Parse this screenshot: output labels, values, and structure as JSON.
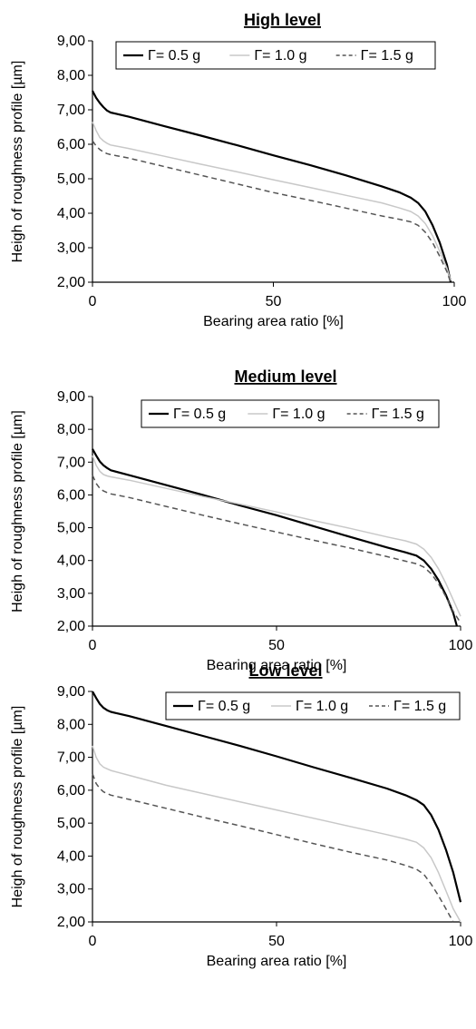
{
  "chart_data": [
    {
      "type": "line",
      "title": "High level",
      "xlabel": "Bearing area ratio [%]",
      "ylabel": "Heigh of roughness profile [µm]",
      "xlim": [
        0,
        100
      ],
      "ylim": [
        2,
        9
      ],
      "xticks": [
        "0",
        "50",
        "100"
      ],
      "yticks": [
        "2,00",
        "3,00",
        "4,00",
        "5,00",
        "6,00",
        "7,00",
        "8,00",
        "9,00"
      ],
      "legend_position": "top",
      "series": [
        {
          "name": "Γ= 0.5 g",
          "color": "#000000",
          "dash": "solid",
          "width": 2.2,
          "x": [
            0,
            1,
            2,
            3,
            4,
            5,
            10,
            20,
            30,
            40,
            50,
            60,
            70,
            80,
            85,
            88,
            90,
            92,
            94,
            96,
            98,
            99
          ],
          "y": [
            7.55,
            7.35,
            7.2,
            7.08,
            6.98,
            6.92,
            6.8,
            6.52,
            6.25,
            5.97,
            5.68,
            5.4,
            5.1,
            4.78,
            4.6,
            4.45,
            4.3,
            4.05,
            3.65,
            3.15,
            2.5,
            2.0
          ]
        },
        {
          "name": "Γ= 1.0 g",
          "color": "#c8c8c8",
          "dash": "solid",
          "width": 1.5,
          "x": [
            0,
            1,
            2,
            3,
            4,
            5,
            10,
            20,
            30,
            40,
            50,
            60,
            70,
            80,
            85,
            88,
            90,
            92,
            94,
            96,
            98,
            99
          ],
          "y": [
            6.65,
            6.4,
            6.2,
            6.1,
            6.03,
            5.98,
            5.88,
            5.65,
            5.42,
            5.2,
            4.97,
            4.75,
            4.52,
            4.3,
            4.15,
            4.05,
            3.92,
            3.7,
            3.35,
            2.9,
            2.4,
            2.05
          ]
        },
        {
          "name": "Γ= 1.5 g",
          "color": "#555555",
          "dash": "6,4",
          "width": 1.5,
          "x": [
            0,
            1,
            2,
            3,
            4,
            5,
            10,
            20,
            30,
            40,
            50,
            60,
            70,
            80,
            85,
            88,
            90,
            92,
            94,
            96,
            98,
            99
          ],
          "y": [
            6.1,
            5.95,
            5.85,
            5.78,
            5.73,
            5.7,
            5.6,
            5.35,
            5.1,
            4.85,
            4.6,
            4.38,
            4.15,
            3.92,
            3.82,
            3.75,
            3.65,
            3.45,
            3.15,
            2.75,
            2.3,
            2.0
          ]
        }
      ]
    },
    {
      "type": "line",
      "title": "Medium level",
      "xlabel": "Bearing area ratio [%]",
      "ylabel": "Heigh of roughness profile [µm]",
      "xlim": [
        0,
        100
      ],
      "ylim": [
        2,
        9
      ],
      "xticks": [
        "0",
        "50",
        "100"
      ],
      "yticks": [
        "2,00",
        "3,00",
        "4,00",
        "5,00",
        "6,00",
        "7,00",
        "8,00",
        "9,00"
      ],
      "legend_position": "top",
      "series": [
        {
          "name": "Γ= 0.5 g",
          "color": "#000000",
          "dash": "solid",
          "width": 2.2,
          "x": [
            0,
            1,
            2,
            3,
            4,
            5,
            10,
            20,
            30,
            40,
            50,
            60,
            70,
            80,
            85,
            88,
            90,
            92,
            94,
            96,
            98,
            99
          ],
          "y": [
            7.4,
            7.2,
            7.02,
            6.9,
            6.82,
            6.75,
            6.6,
            6.3,
            6.0,
            5.68,
            5.38,
            5.05,
            4.72,
            4.4,
            4.25,
            4.15,
            4.0,
            3.75,
            3.4,
            2.95,
            2.4,
            2.0
          ]
        },
        {
          "name": "Γ= 1.0 g",
          "color": "#c8c8c8",
          "dash": "solid",
          "width": 1.5,
          "x": [
            0,
            1,
            2,
            3,
            4,
            5,
            10,
            20,
            30,
            40,
            50,
            60,
            70,
            80,
            85,
            88,
            90,
            92,
            94,
            96,
            98,
            100
          ],
          "y": [
            7.2,
            6.9,
            6.72,
            6.62,
            6.58,
            6.55,
            6.45,
            6.2,
            5.95,
            5.72,
            5.48,
            5.22,
            4.98,
            4.72,
            4.6,
            4.5,
            4.35,
            4.1,
            3.75,
            3.3,
            2.8,
            2.3
          ]
        },
        {
          "name": "Γ= 1.5 g",
          "color": "#555555",
          "dash": "6,4",
          "width": 1.5,
          "x": [
            0,
            1,
            2,
            3,
            4,
            5,
            10,
            20,
            30,
            40,
            50,
            60,
            70,
            80,
            85,
            88,
            90,
            92,
            94,
            96,
            98,
            100
          ],
          "y": [
            6.6,
            6.35,
            6.2,
            6.12,
            6.07,
            6.03,
            5.92,
            5.65,
            5.38,
            5.12,
            4.87,
            4.62,
            4.38,
            4.12,
            3.98,
            3.9,
            3.8,
            3.6,
            3.3,
            2.9,
            2.45,
            2.1
          ]
        }
      ]
    },
    {
      "type": "line",
      "title": "Low level",
      "xlabel": "Bearing area ratio [%]",
      "ylabel": "Heigh of roughness profile [µm]",
      "xlim": [
        0,
        100
      ],
      "ylim": [
        2,
        9
      ],
      "xticks": [
        "0",
        "50",
        "100"
      ],
      "yticks": [
        "2,00",
        "3,00",
        "4,00",
        "5,00",
        "6,00",
        "7,00",
        "8,00",
        "9,00"
      ],
      "legend_position": "top-right",
      "series": [
        {
          "name": "Γ= 0.5 g",
          "color": "#000000",
          "dash": "solid",
          "width": 2.2,
          "x": [
            0,
            1,
            2,
            3,
            4,
            5,
            10,
            20,
            30,
            40,
            50,
            60,
            70,
            80,
            85,
            88,
            90,
            92,
            94,
            96,
            98,
            100
          ],
          "y": [
            9.0,
            8.8,
            8.62,
            8.5,
            8.43,
            8.38,
            8.25,
            7.95,
            7.65,
            7.35,
            7.03,
            6.7,
            6.38,
            6.05,
            5.85,
            5.7,
            5.55,
            5.25,
            4.8,
            4.2,
            3.5,
            2.6
          ]
        },
        {
          "name": "Γ= 1.0 g",
          "color": "#c8c8c8",
          "dash": "solid",
          "width": 1.5,
          "x": [
            0,
            1,
            2,
            3,
            4,
            5,
            10,
            20,
            30,
            40,
            50,
            60,
            70,
            80,
            85,
            88,
            90,
            92,
            94,
            96,
            98,
            100
          ],
          "y": [
            7.35,
            7.0,
            6.8,
            6.7,
            6.65,
            6.6,
            6.45,
            6.15,
            5.9,
            5.65,
            5.4,
            5.15,
            4.9,
            4.65,
            4.52,
            4.42,
            4.25,
            3.95,
            3.5,
            2.95,
            2.4,
            2.0
          ]
        },
        {
          "name": "Γ= 1.5 g",
          "color": "#555555",
          "dash": "6,4",
          "width": 1.5,
          "x": [
            0,
            1,
            2,
            3,
            4,
            5,
            10,
            20,
            30,
            40,
            50,
            60,
            70,
            80,
            85,
            88,
            90,
            92,
            94,
            96,
            97,
            98
          ],
          "y": [
            6.5,
            6.2,
            6.05,
            5.95,
            5.9,
            5.85,
            5.72,
            5.45,
            5.18,
            4.92,
            4.65,
            4.38,
            4.12,
            3.88,
            3.72,
            3.6,
            3.45,
            3.15,
            2.8,
            2.4,
            2.2,
            2.0
          ]
        }
      ]
    }
  ]
}
